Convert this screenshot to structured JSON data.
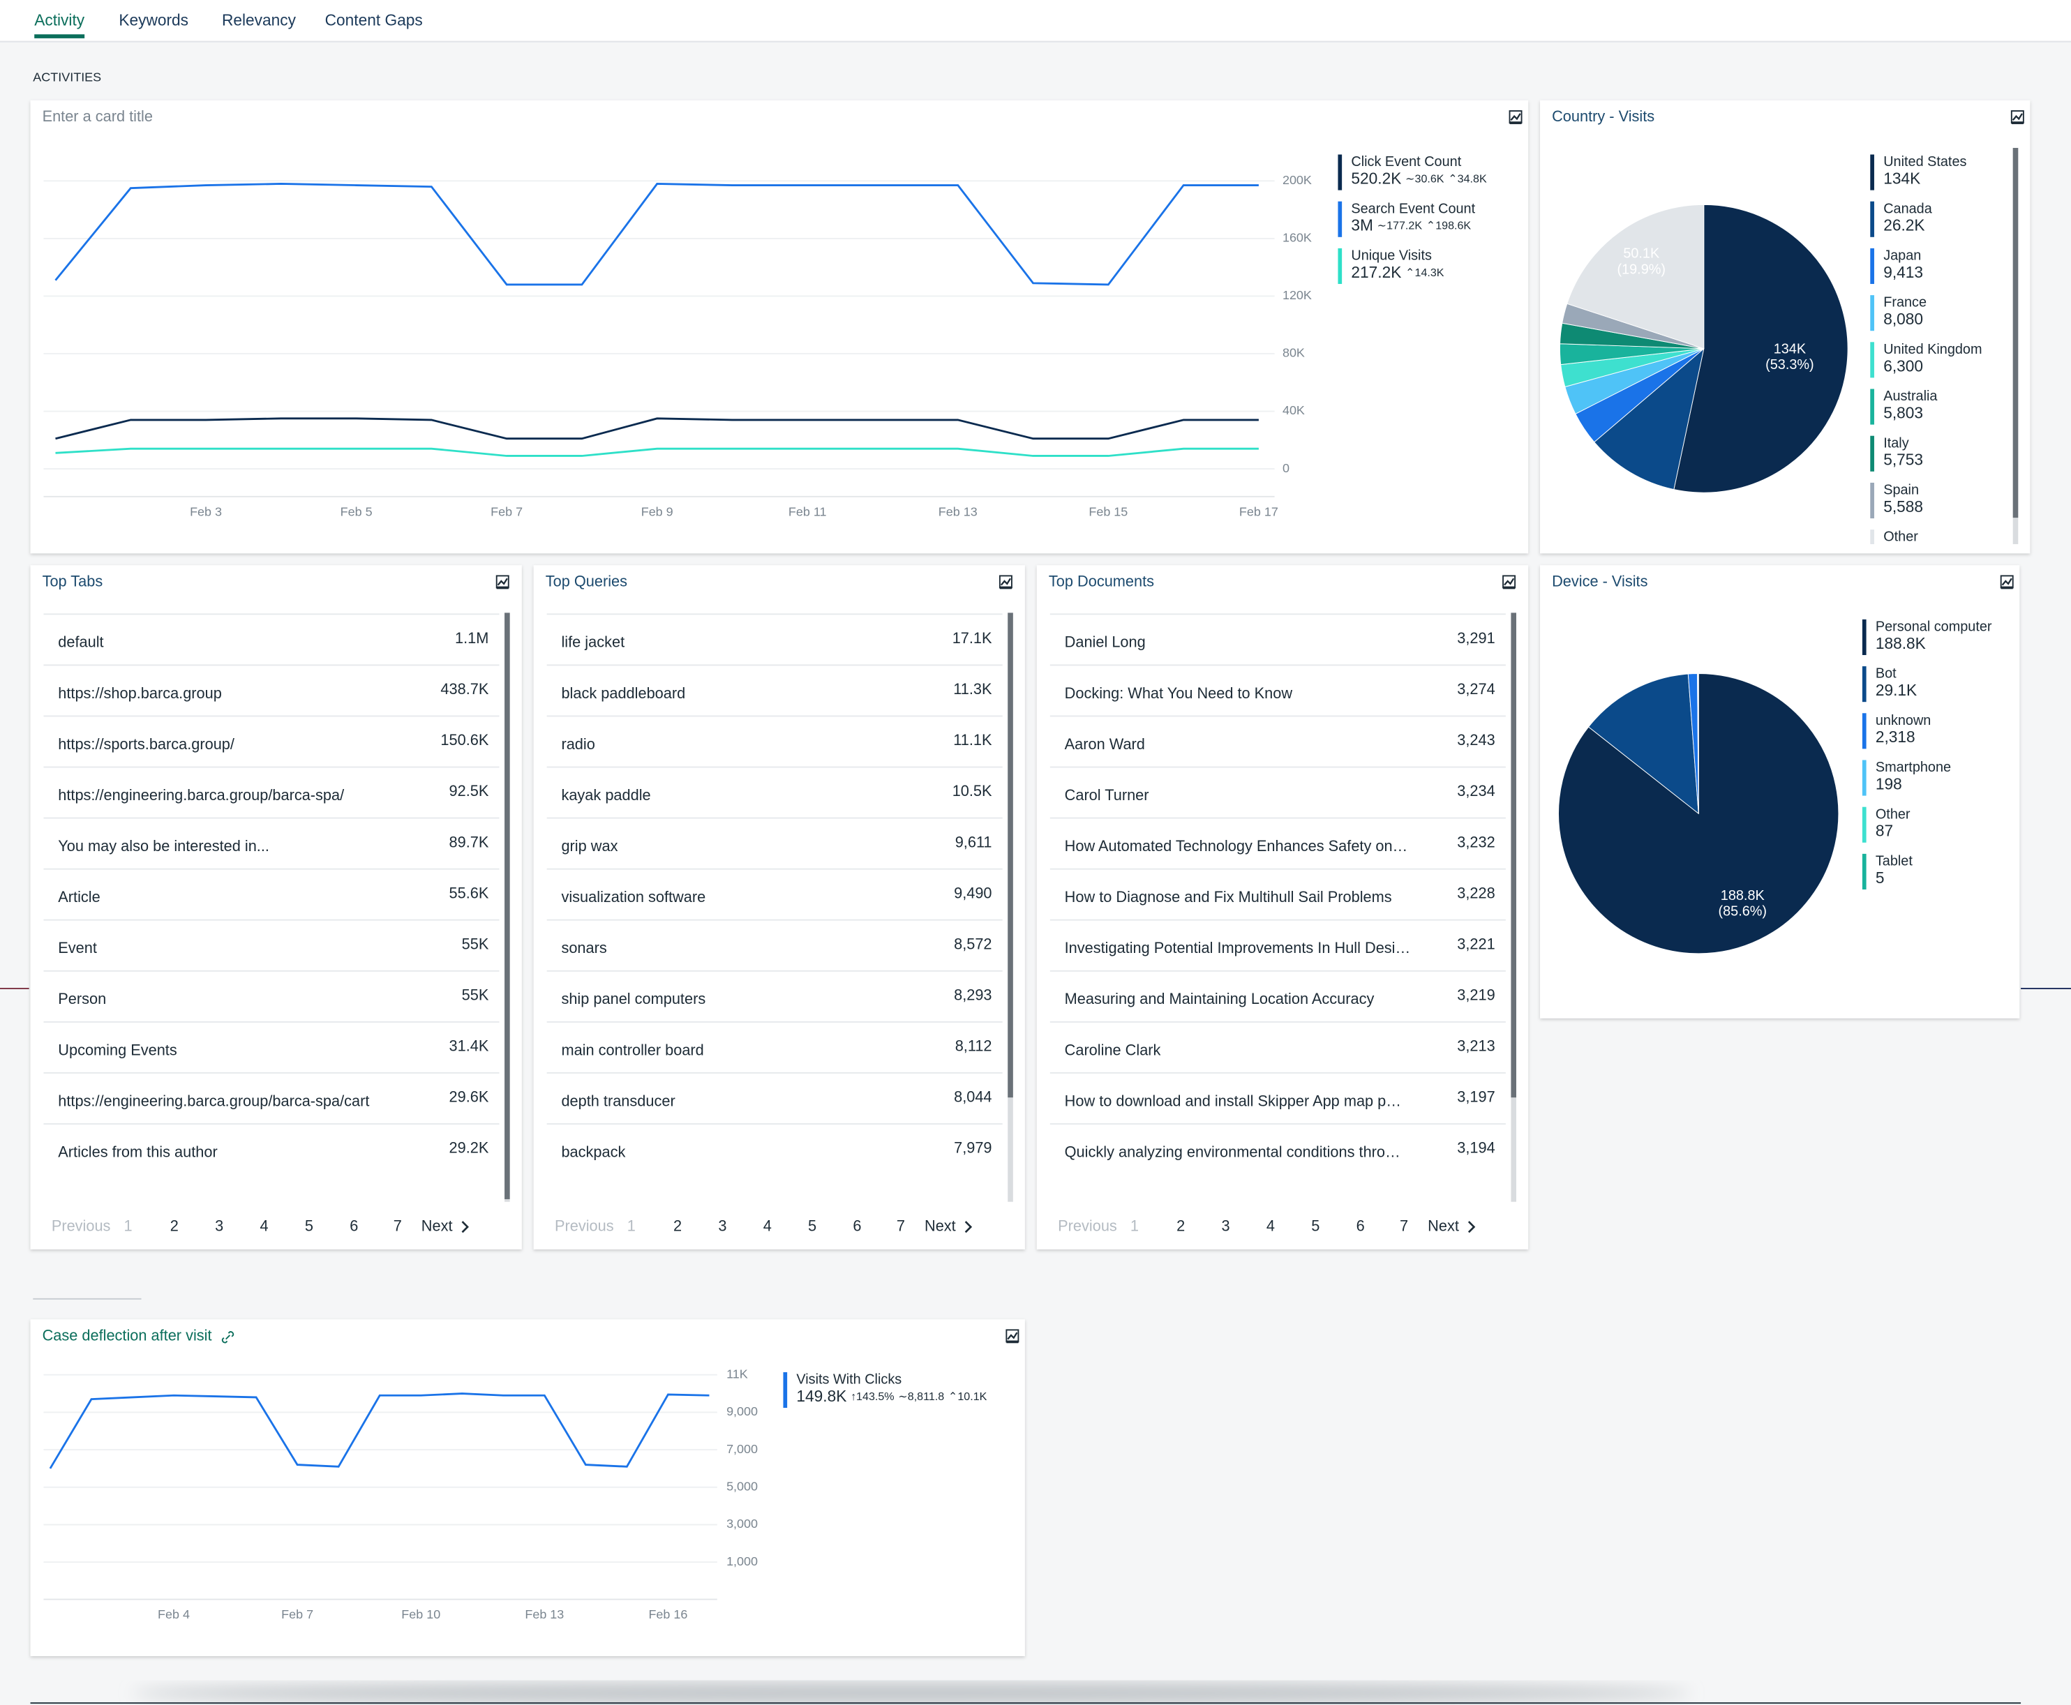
{
  "tabs": [
    "Activity",
    "Keywords",
    "Relevancy",
    "Content Gaps"
  ],
  "section_title": "ACTIVITIES",
  "chart_data": [
    {
      "type": "line",
      "title": "Enter a card title",
      "x": [
        null,
        null,
        "Feb 3",
        null,
        "Feb 5",
        null,
        "Feb 7",
        null,
        "Feb 9",
        null,
        "Feb 11",
        null,
        "Feb 13",
        null,
        "Feb 15",
        null,
        "Feb 17"
      ],
      "ylim": [
        0,
        200000
      ],
      "yticks": [
        0,
        {
          "value": 40000,
          "label": "40K"
        },
        {
          "value": 80000,
          "label": "80K"
        },
        {
          "value": 120000,
          "label": "120K"
        },
        {
          "value": 160000,
          "label": "160K"
        },
        {
          "value": 200000,
          "label": "200K"
        }
      ],
      "grid": true,
      "series": [
        {
          "name": "Click Event Count",
          "color": "#0a2a4f",
          "stats": [
            "520.2K",
            "∼30.6K",
            "⌃34.8K"
          ],
          "values": [
            21000,
            34000,
            34000,
            35000,
            35000,
            34000,
            21000,
            21000,
            35000,
            34000,
            34000,
            34000,
            34000,
            21000,
            21000,
            34000,
            34000
          ]
        },
        {
          "name": "Search Event Count",
          "color": "#1a73e8",
          "stats": [
            "3M",
            "∼177.2K",
            "⌃198.6K"
          ],
          "values": [
            131000,
            195000,
            197000,
            198000,
            197000,
            196000,
            128000,
            128000,
            198000,
            197000,
            197000,
            197000,
            197000,
            129000,
            128000,
            197000,
            197000
          ]
        },
        {
          "name": "Unique Visits",
          "color": "#2ee0c8",
          "stats": [
            "217.2K",
            "⌃14.3K"
          ],
          "values": [
            11000,
            14000,
            14000,
            14000,
            14000,
            14000,
            9000,
            9000,
            14000,
            14000,
            14000,
            14000,
            14000,
            9000,
            9000,
            14000,
            14000
          ]
        }
      ]
    },
    {
      "type": "pie",
      "title": "Country - Visits",
      "categories": [
        "United States",
        "Canada",
        "Japan",
        "France",
        "United Kingdom",
        "Australia",
        "Italy",
        "Spain",
        "Other"
      ],
      "values": [
        134000,
        26200,
        9413,
        8080,
        6300,
        5803,
        5753,
        5588,
        50100
      ],
      "value_labels": [
        "134K",
        "26.2K",
        "9,413",
        "8,080",
        "6,300",
        "5,803",
        "5,753",
        "5,588",
        "50.1K"
      ],
      "slice_labels": [
        "(53.3%)",
        null,
        null,
        null,
        null,
        null,
        null,
        null,
        "(19.9%)"
      ],
      "colors": [
        "#0a2a4f",
        "#0b4a8a",
        "#1a73e8",
        "#4fc3f7",
        "#3ee0cf",
        "#19b39c",
        "#0e8a73",
        "#9aa8b8",
        "#e1e5e9"
      ]
    },
    {
      "type": "pie",
      "title": "Device - Visits",
      "categories": [
        "Personal computer",
        "Bot",
        "unknown",
        "Smartphone",
        "Other",
        "Tablet"
      ],
      "values": [
        188800,
        29100,
        2318,
        198,
        87,
        5
      ],
      "value_labels": [
        "188.8K",
        "29.1K",
        "2,318",
        "198",
        "87",
        "5"
      ],
      "slice_labels": [
        "(85.6%)",
        null,
        null,
        null,
        null,
        null
      ],
      "colors": [
        "#0a2a4f",
        "#0b4a8a",
        "#1a73e8",
        "#4fc3f7",
        "#3ee0cf",
        "#19b39c"
      ]
    },
    {
      "type": "line",
      "title": "Case deflection after visit",
      "x": [
        null,
        null,
        null,
        "Feb 4",
        null,
        null,
        "Feb 7",
        null,
        null,
        "Feb 10",
        null,
        null,
        "Feb 13",
        null,
        null,
        "Feb 16",
        null
      ],
      "ylim": [
        0,
        11000
      ],
      "yticks": [
        {
          "value": 1000,
          "label": "1,000"
        },
        {
          "value": 3000,
          "label": "3,000"
        },
        {
          "value": 5000,
          "label": "5,000"
        },
        {
          "value": 7000,
          "label": "7,000"
        },
        {
          "value": 9000,
          "label": "9,000"
        },
        {
          "value": 11000,
          "label": "11K"
        }
      ],
      "grid": true,
      "series": [
        {
          "name": "Visits With Clicks",
          "color": "#1a73e8",
          "stats": [
            "149.8K",
            "↑143.5%",
            "∼8,811.8",
            "⌃10.1K"
          ],
          "values": [
            6000,
            9700,
            9800,
            9900,
            9850,
            9800,
            6200,
            6100,
            9900,
            9900,
            10000,
            9900,
            9900,
            6200,
            6100,
            9950,
            9900
          ]
        }
      ]
    }
  ],
  "tables": [
    {
      "title": "Top Tabs",
      "rows": [
        [
          "default",
          "1.1M"
        ],
        [
          "https://shop.barca.group",
          "438.7K"
        ],
        [
          "https://sports.barca.group/",
          "150.6K"
        ],
        [
          "https://engineering.barca.group/barca-spa/",
          "92.5K"
        ],
        [
          "You may also be interested in...",
          "89.7K"
        ],
        [
          "Article",
          "55.6K"
        ],
        [
          "Event",
          "55K"
        ],
        [
          "Person",
          "55K"
        ],
        [
          "Upcoming Events",
          "31.4K"
        ],
        [
          "https://engineering.barca.group/barca-spa/cart",
          "29.6K"
        ],
        [
          "Articles from this author",
          "29.2K"
        ]
      ]
    },
    {
      "title": "Top Queries",
      "rows": [
        [
          "life jacket",
          "17.1K"
        ],
        [
          "black paddleboard",
          "11.3K"
        ],
        [
          "radio",
          "11.1K"
        ],
        [
          "kayak paddle",
          "10.5K"
        ],
        [
          "grip wax",
          "9,611"
        ],
        [
          "visualization software",
          "9,490"
        ],
        [
          "sonars",
          "8,572"
        ],
        [
          "ship panel computers",
          "8,293"
        ],
        [
          "main controller board",
          "8,112"
        ],
        [
          "depth transducer",
          "8,044"
        ],
        [
          "backpack",
          "7,979"
        ]
      ]
    },
    {
      "title": "Top Documents",
      "rows": [
        [
          "Daniel Long",
          "3,291"
        ],
        [
          "Docking: What You Need to Know",
          "3,274"
        ],
        [
          "Aaron Ward",
          "3,243"
        ],
        [
          "Carol Turner",
          "3,234"
        ],
        [
          "How Automated Technology Enhances Safety on…",
          "3,232"
        ],
        [
          "How to Diagnose and Fix Multihull Sail Problems",
          "3,228"
        ],
        [
          "Investigating Potential Improvements In Hull Desi…",
          "3,221"
        ],
        [
          "Measuring and Maintaining Location Accuracy",
          "3,219"
        ],
        [
          "Caroline Clark",
          "3,213"
        ],
        [
          "How to download and install Skipper App map p…",
          "3,197"
        ],
        [
          "Quickly analyzing environmental conditions thro…",
          "3,194"
        ]
      ]
    }
  ],
  "pagination": {
    "previous": "Previous",
    "pages": [
      1,
      2,
      3,
      4,
      5,
      6,
      7
    ],
    "next": "Next"
  }
}
